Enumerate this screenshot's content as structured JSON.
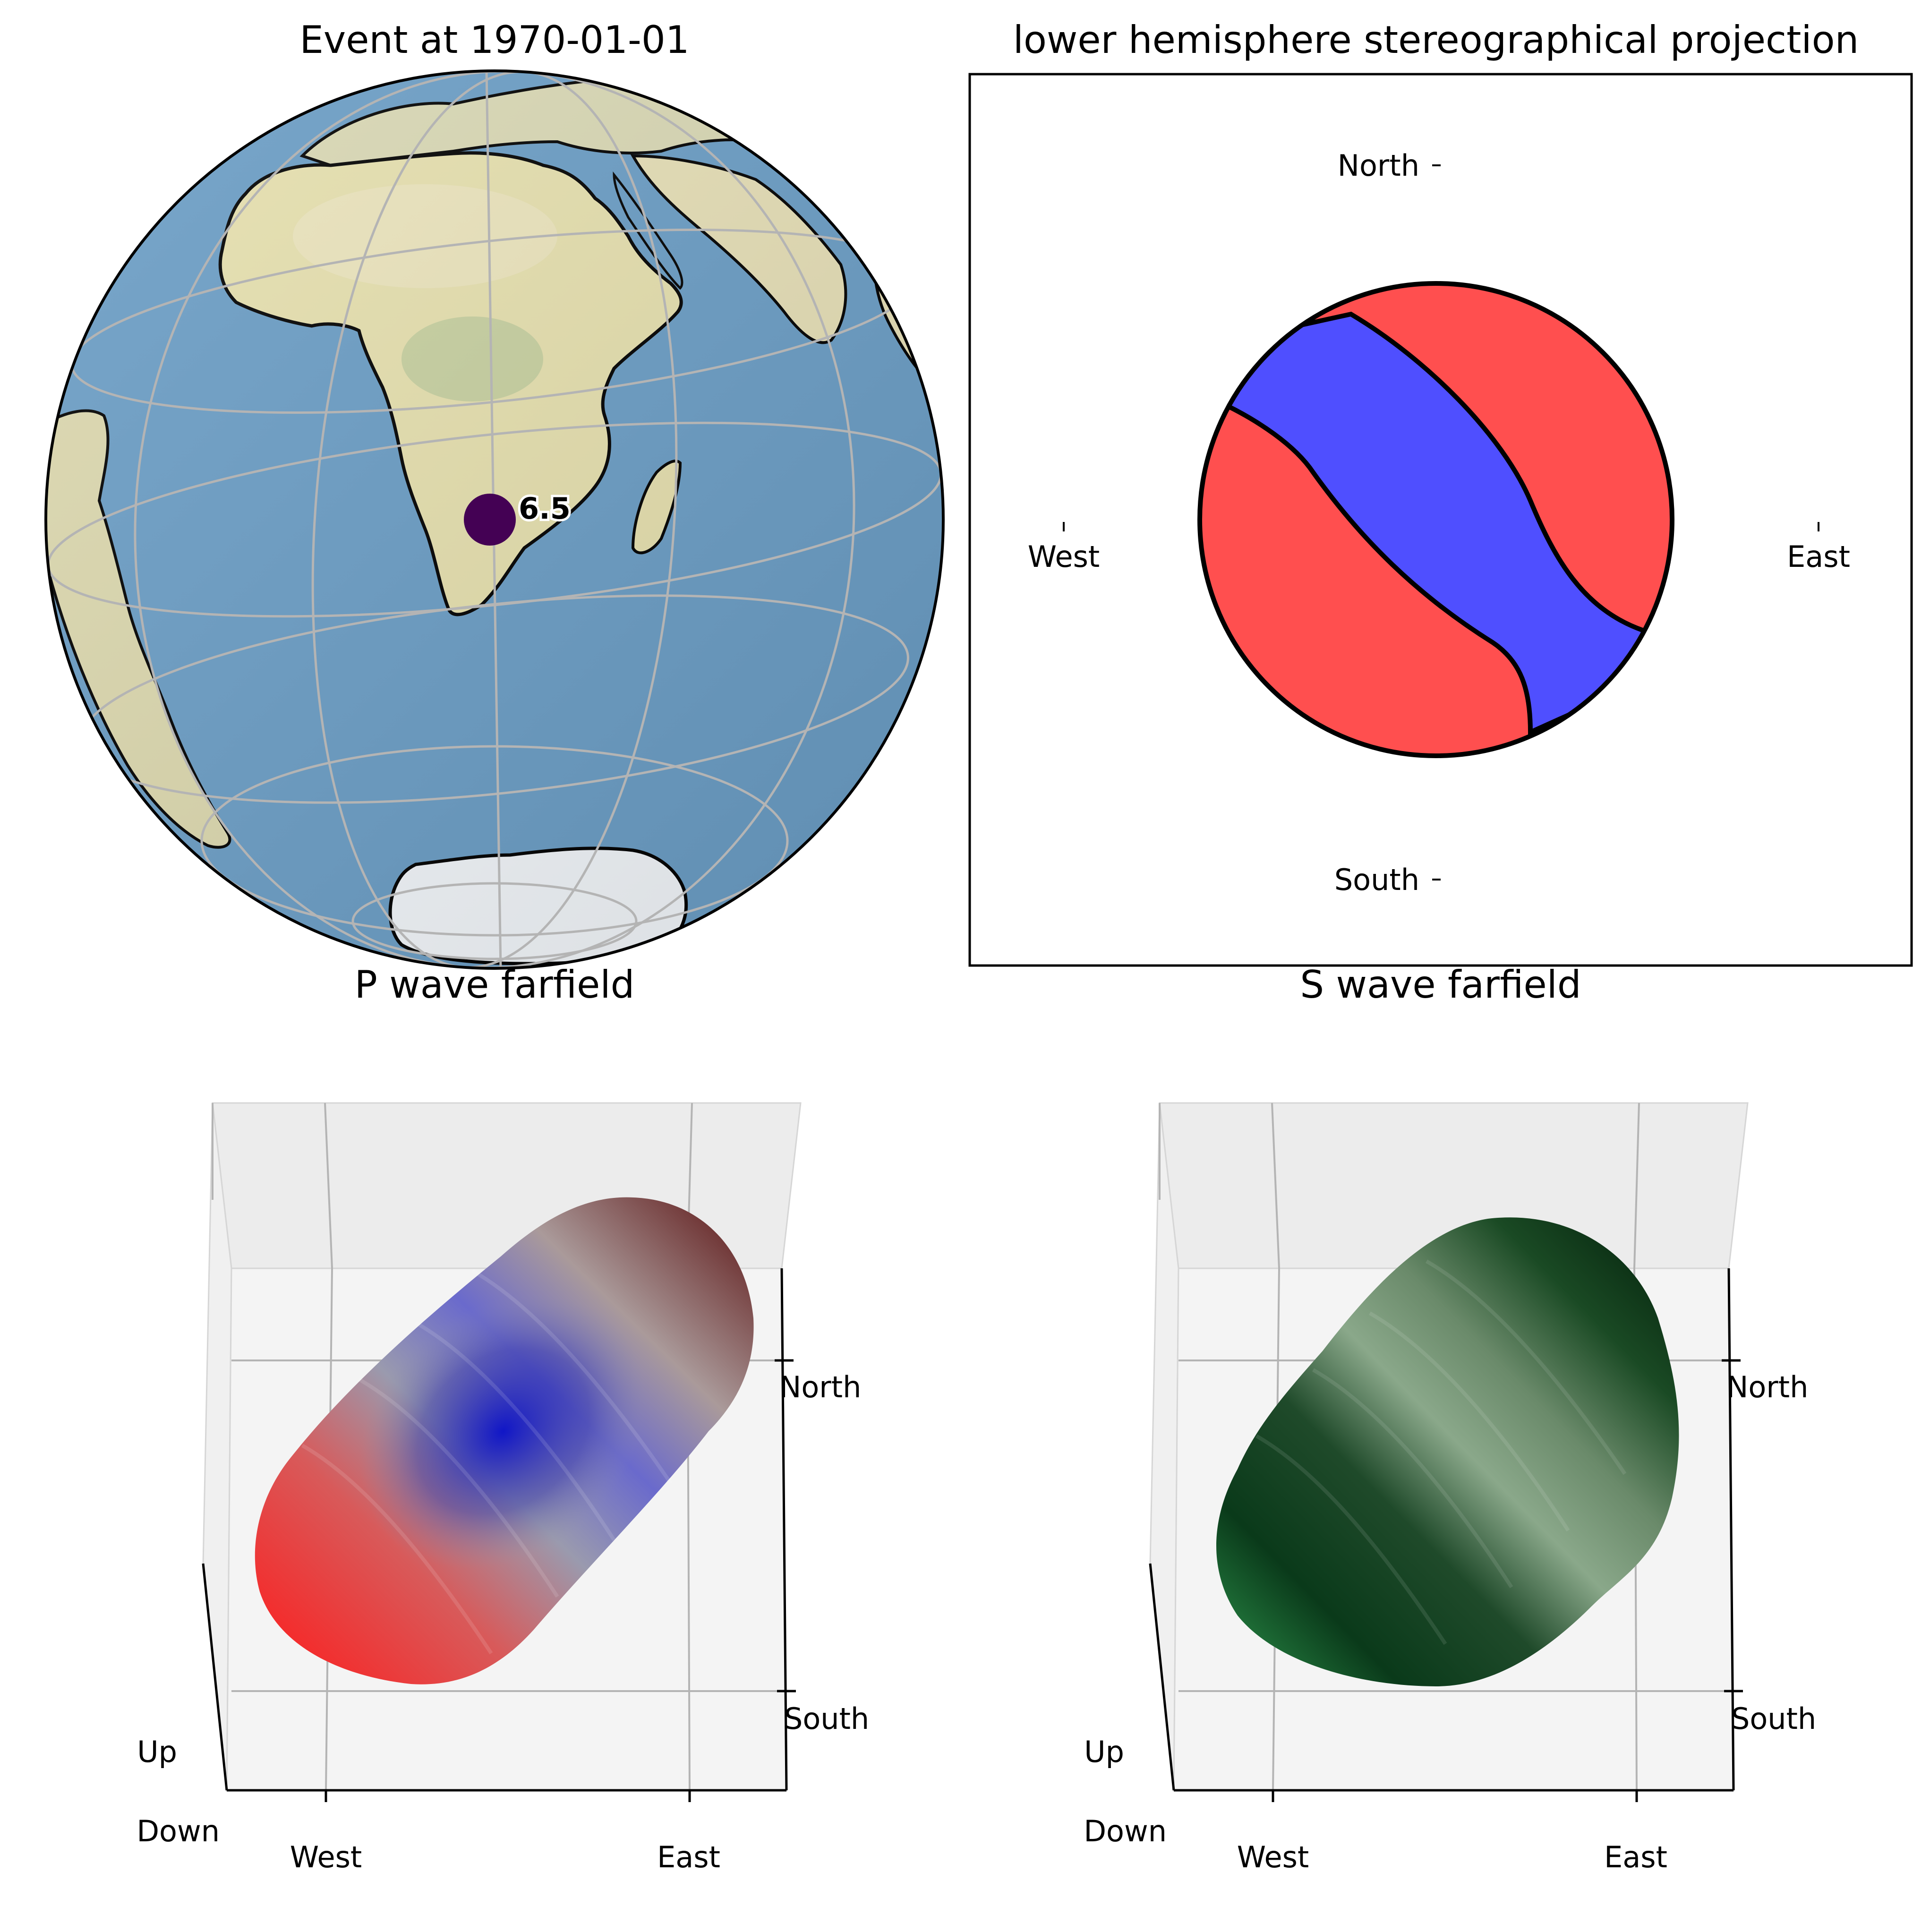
{
  "chart_data": [
    {
      "type": "map",
      "title": "Event at 1970-01-01",
      "projection": "orthographic",
      "event": {
        "date": "1970-01-01",
        "lat": -26.0,
        "lon": 27.0,
        "magnitude": "6.5",
        "marker_color": "#440154"
      },
      "gridlines": true,
      "colors": {
        "ocean": "#6a9dc5",
        "land": "#e6e0ae",
        "ice": "#f2f6fa",
        "coast": "#000000"
      }
    },
    {
      "type": "beachball",
      "title": "lower hemisphere stereographical projection",
      "direction_labels": [
        "North",
        "South",
        "West",
        "East"
      ],
      "compression_color": "#ff4f4f",
      "dilatation_color": "#4f4fff"
    },
    {
      "type": "surface3d",
      "title": "P wave farfield",
      "xticklabels": [
        "West",
        "East"
      ],
      "yticklabels": [
        "North",
        "South"
      ],
      "zticklabels": [
        "Up",
        "Down"
      ],
      "colormap": [
        "#1a1ac8",
        "#a0a0a8",
        "#ff1a1a",
        "#4a0a0a"
      ]
    },
    {
      "type": "surface3d",
      "title": "S wave farfield",
      "xticklabels": [
        "West",
        "East"
      ],
      "yticklabels": [
        "North",
        "South"
      ],
      "zticklabels": [
        "Up",
        "Down"
      ],
      "colormap": [
        "#002a10",
        "#1f5a2e",
        "#8aa88a",
        "#2f9a4f"
      ]
    }
  ]
}
